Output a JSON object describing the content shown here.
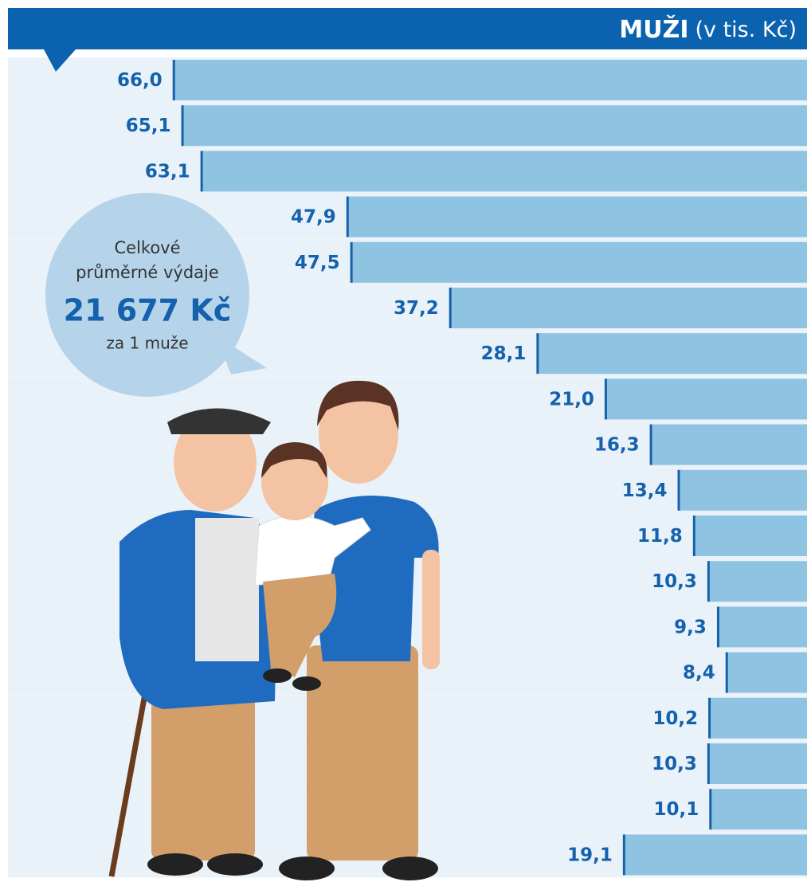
{
  "chart_data": {
    "type": "bar",
    "orientation": "horizontal",
    "title": "MUŽI",
    "subtitle": "(v tis. Kč)",
    "values": [
      66.0,
      65.1,
      63.1,
      47.9,
      47.5,
      37.2,
      28.1,
      21.0,
      16.3,
      13.4,
      11.8,
      10.3,
      9.3,
      8.4,
      10.2,
      10.3,
      10.1,
      19.1
    ],
    "value_labels": [
      "66,0",
      "65,1",
      "63,1",
      "47,9",
      "47,5",
      "37,2",
      "28,1",
      "21,0",
      "16,3",
      "13,4",
      "11,8",
      "10,3",
      "9,3",
      "8,4",
      "10,2",
      "10,3",
      "10,1",
      "19,1"
    ],
    "color": "#8fc3e2",
    "callout": {
      "line1": "Celkové",
      "line2": "průměrné výdaje",
      "amount": "21 677 Kč",
      "line3": "za 1 muže"
    }
  }
}
